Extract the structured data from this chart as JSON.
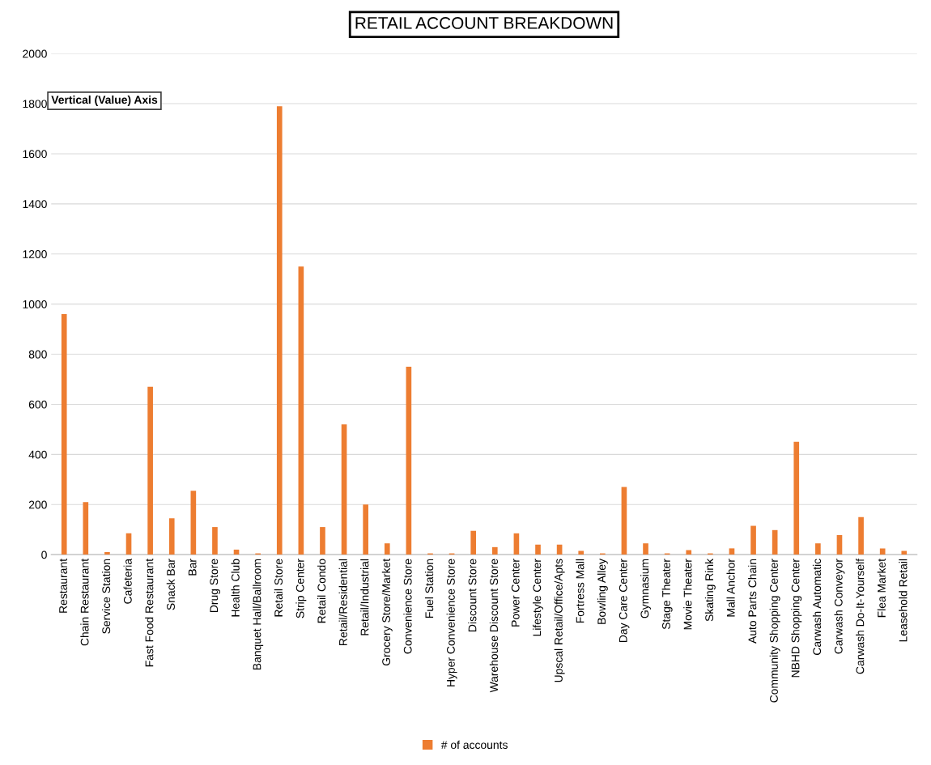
{
  "chart_data": {
    "type": "bar",
    "title": "RETAIL ACCOUNT BREAKDOWN",
    "ylabel": "Vertical (Value) Axis",
    "categories": [
      "Restaurant",
      "Chain Restaurant",
      "Service Station",
      "Cafeteria",
      "Fast Food Restaurant",
      "Snack Bar",
      "Bar",
      "Drug Store",
      "Health Club",
      "Banquet Hall/Ballroom",
      "Retail Store",
      "Strip Center",
      "Retail Condo",
      "Retail/Residential",
      "Retail/Industrial",
      "Grocery Store/Market",
      "Convenience Store",
      "Fuel Station",
      "Hyper Convenience Store",
      "Discount Store",
      "Warehouse Discount Store",
      "Power Center",
      "Lifestyle Center",
      "Upscal Retail/Office/Apts",
      "Fortress Mall",
      "Bowling Alley",
      "Day Care Center",
      "Gymnasium",
      "Stage Theater",
      "Movie Theater",
      "Skating Rink",
      "Mall Anchor",
      "Auto Parts Chain",
      "Community Shopping Center",
      "NBHD Shopping Center",
      "Carwash Automatic",
      "Carwash Conveyor",
      "Carwash Do-It-Yourself",
      "Flea Market",
      "Leasehold Retail"
    ],
    "series": [
      {
        "name": "# of accounts",
        "color": "#ed7d31",
        "values": [
          960,
          210,
          10,
          85,
          670,
          145,
          255,
          110,
          20,
          5,
          1790,
          1150,
          110,
          520,
          200,
          45,
          750,
          5,
          5,
          95,
          30,
          85,
          40,
          40,
          15,
          5,
          270,
          45,
          5,
          18,
          5,
          25,
          115,
          98,
          450,
          45,
          78,
          150,
          25,
          15
        ]
      }
    ],
    "ylim": [
      0,
      2000
    ],
    "yticks": [
      0,
      200,
      400,
      600,
      800,
      1000,
      1200,
      1400,
      1600,
      1800,
      2000
    ],
    "grid": "y",
    "legend": "bottom"
  }
}
